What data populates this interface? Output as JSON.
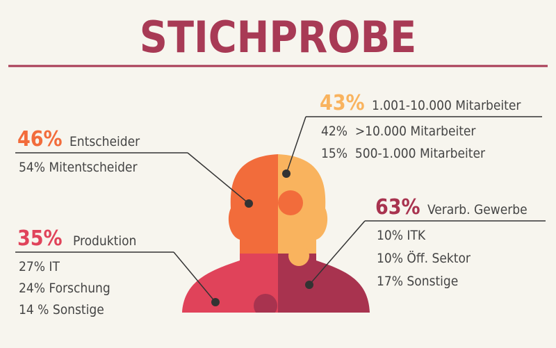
{
  "title": "STICHPROBE",
  "groups": [
    {
      "highlight": "46%",
      "label": "Entscheider",
      "items": [
        "54% Mitentscheider"
      ]
    },
    {
      "highlight": "43%",
      "label": "1.001-10.000 Mitarbeiter",
      "items": [
        "42%  >10.000 Mitarbeiter",
        "15%  500-1.000 Mitarbeiter"
      ]
    },
    {
      "highlight": "35%",
      "label": "Produktion",
      "items": [
        "27% IT",
        "24% Forschung",
        "14 % Sonstige"
      ]
    },
    {
      "highlight": "63%",
      "label": "Verarb. Gewerbe",
      "items": [
        "10% ITK",
        "10% Öff. Sektor",
        "17% Sonstige"
      ]
    }
  ]
}
